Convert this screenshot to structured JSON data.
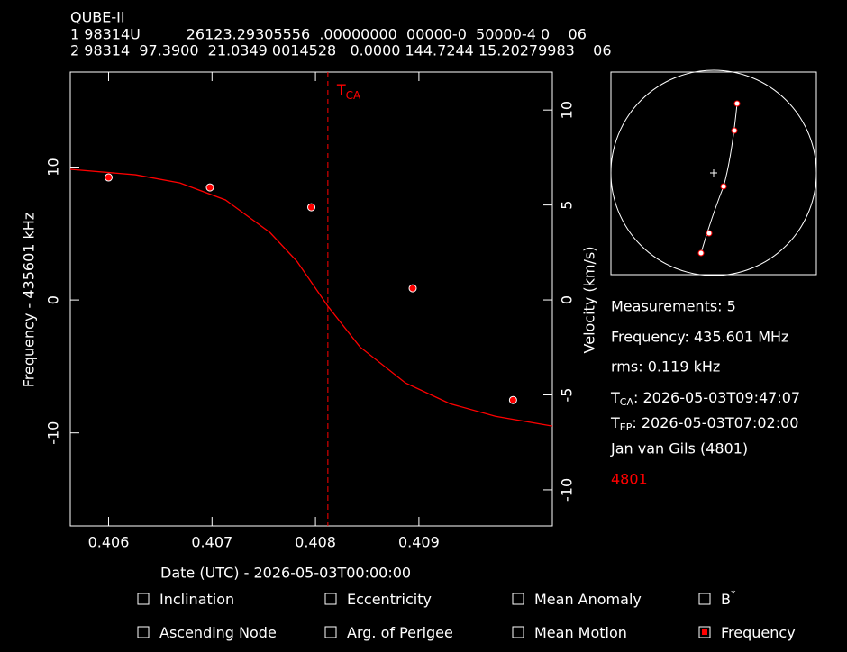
{
  "header": {
    "name": "QUBE-II",
    "line1": "1 98314U          26123.29305556  .00000000  00000-0  50000-4 0    06",
    "line2": "2 98314  97.3900  21.0349 0014528   0.0000 144.7244 15.20279983    06"
  },
  "chart_data": {
    "type": "scatter",
    "x_label": "Date (UTC) - 2026-05-03T00:00:00",
    "y_label": "Frequency - 435601 kHz",
    "y2_label": "Velocity (km/s)",
    "xlim": [
      0.40563,
      0.41029
    ],
    "xticks": [
      0.406,
      0.407,
      0.408,
      0.409
    ],
    "ylim": [
      -17.0,
      17.15
    ],
    "yticks": [
      -10,
      0,
      10
    ],
    "y2lim": [
      -11.9,
      12.0
    ],
    "y2ticks": [
      -10,
      -5,
      0,
      5,
      10
    ],
    "x": [
      0.406,
      0.40698,
      0.40796,
      0.40894,
      0.40991
    ],
    "values": [
      9.22,
      8.47,
      6.98,
      0.88,
      -7.53
    ],
    "color": "#ff0000",
    "fit": {
      "color": "#ff0000",
      "x": [
        0.40563,
        0.40626,
        0.40669,
        0.40713,
        0.40756,
        0.40782,
        0.40812,
        0.40843,
        0.40887,
        0.4093,
        0.40974,
        0.41029
      ],
      "values": [
        9.83,
        9.42,
        8.81,
        7.53,
        5.08,
        2.92,
        -0.47,
        -3.53,
        -6.24,
        -7.8,
        -8.75,
        -9.49
      ]
    },
    "tca_x": 0.40812,
    "tca_label": {
      "text": "T",
      "sub": "CA"
    }
  },
  "info": {
    "measurements": "Measurements: 5",
    "frequency": "Frequency: 435.601 MHz",
    "rms": "rms: 0.119 kHz",
    "tca": {
      "text": "T",
      "sub": "CA",
      "value": ": 2026-05-03T09:47:07"
    },
    "tep": {
      "text": "T",
      "sub": "EP",
      "value": ": 2026-05-03T07:02:00"
    },
    "observer": "Jan van Gils (4801)",
    "site": "4801"
  },
  "checkboxes": [
    {
      "label": "Inclination",
      "checked": false
    },
    {
      "label": "Eccentricity",
      "checked": false
    },
    {
      "label": "Mean Anomaly",
      "checked": false
    },
    {
      "label": "B",
      "sup": "*",
      "checked": false
    },
    {
      "label": "Ascending Node",
      "checked": false
    },
    {
      "label": "Arg. of Perigee",
      "checked": false
    },
    {
      "label": "Mean Motion",
      "checked": false
    },
    {
      "label": "Frequency",
      "checked": true
    }
  ]
}
